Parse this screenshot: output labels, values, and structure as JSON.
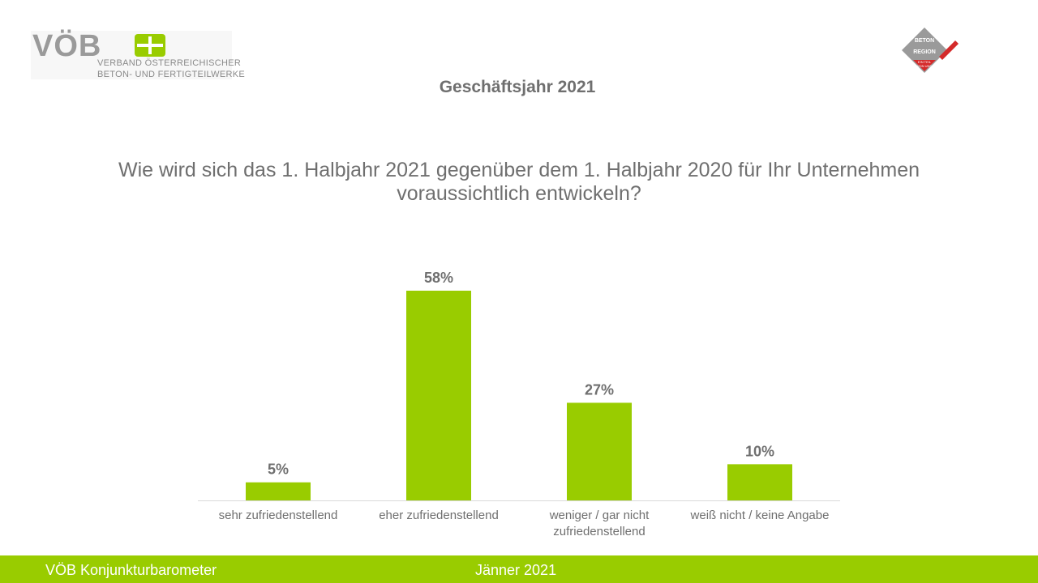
{
  "logo": {
    "mark": "VÖB",
    "line1": "VERBAND ÖSTERREICHISCHER",
    "line2": "BETON- UND FERTIGTEILWERKE"
  },
  "badge": {
    "line1": "BETON",
    "line2": "REGION",
    "line3": "EIN TEIL",
    "line4": "VON UNS"
  },
  "page_title": "Geschäftsjahr 2021",
  "question": "Wie wird sich das 1. Halbjahr 2021 gegenüber dem 1. Halbjahr 2020 für Ihr Unternehmen voraussichtlich entwickeln?",
  "footer": {
    "left": "VÖB Konjunkturbarometer",
    "center": "Jänner 2021"
  },
  "colors": {
    "accent": "#99cc00",
    "text": "#6f6f6f",
    "axis": "#d9d9d9"
  },
  "chart_data": {
    "type": "bar",
    "categories": [
      [
        "sehr zufriedenstellend"
      ],
      [
        "eher zufriedenstellend"
      ],
      [
        "weniger / gar nicht",
        "zufriedenstellend"
      ],
      [
        "weiß nicht / keine Angabe"
      ]
    ],
    "values": [
      5,
      58,
      27,
      10
    ],
    "data_labels": [
      "5%",
      "58%",
      "27%",
      "10%"
    ],
    "unit": "%",
    "ylim": [
      0,
      58
    ],
    "grid": false,
    "legend": "none"
  }
}
